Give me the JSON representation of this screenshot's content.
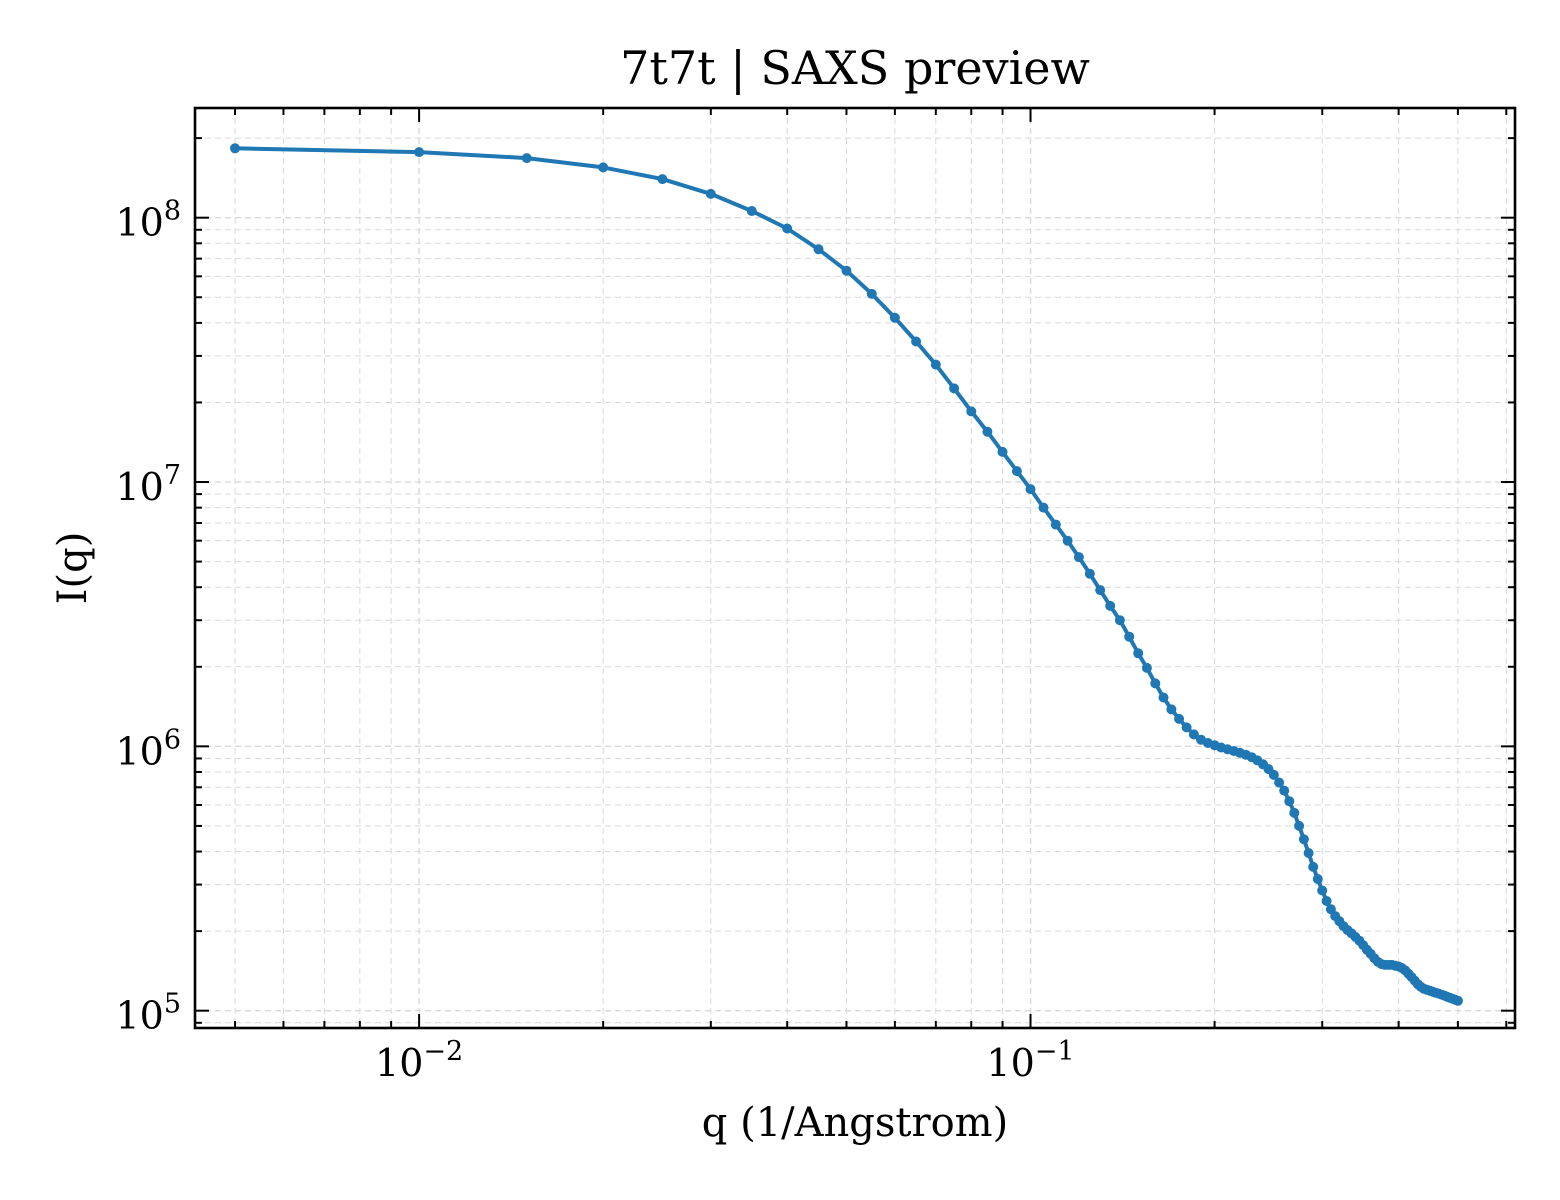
{
  "chart_data": {
    "type": "line",
    "title": "7t7t | SAXS preview",
    "xlabel": "q (1/Angstrom)",
    "ylabel": "I(q)",
    "x_scale": "log",
    "y_scale": "log",
    "xlim": [
      0.0043,
      0.62
    ],
    "ylim": [
      86000,
      260000000
    ],
    "grid": true,
    "legend": "none",
    "x_ticks": [
      {
        "value": 0.01,
        "base": "10",
        "exp": "−2"
      },
      {
        "value": 0.1,
        "base": "10",
        "exp": "−1"
      }
    ],
    "y_ticks": [
      {
        "value": 100000,
        "base": "10",
        "exp": "5"
      },
      {
        "value": 1000000,
        "base": "10",
        "exp": "6"
      },
      {
        "value": 10000000,
        "base": "10",
        "exp": "7"
      },
      {
        "value": 100000000,
        "base": "10",
        "exp": "8"
      }
    ],
    "colors": {
      "series": "#1f77b4",
      "grid": "#d9d9d9",
      "axes": "#000000"
    },
    "series": [
      {
        "x": [
          0.005,
          0.01,
          0.015,
          0.02,
          0.025,
          0.03,
          0.035,
          0.04,
          0.045,
          0.05,
          0.055,
          0.06,
          0.065,
          0.07,
          0.075,
          0.08,
          0.085,
          0.09,
          0.095,
          0.1,
          0.105,
          0.11,
          0.115,
          0.12,
          0.125,
          0.13,
          0.135,
          0.14,
          0.145,
          0.15,
          0.155,
          0.16,
          0.165,
          0.17,
          0.175,
          0.18,
          0.185,
          0.19,
          0.195,
          0.2,
          0.205,
          0.21,
          0.215,
          0.22,
          0.225,
          0.23,
          0.235,
          0.24,
          0.245,
          0.25,
          0.255,
          0.26,
          0.265,
          0.27,
          0.275,
          0.28,
          0.285,
          0.29,
          0.295,
          0.3,
          0.305,
          0.31,
          0.315,
          0.32,
          0.325,
          0.33,
          0.335,
          0.34,
          0.345,
          0.35,
          0.355,
          0.36,
          0.365,
          0.37,
          0.375,
          0.38,
          0.385,
          0.39,
          0.395,
          0.4,
          0.405,
          0.41,
          0.415,
          0.42,
          0.425,
          0.43,
          0.435,
          0.44,
          0.445,
          0.45,
          0.455,
          0.46,
          0.465,
          0.47,
          0.475,
          0.48,
          0.485,
          0.49,
          0.495,
          0.5
        ],
        "y": [
          183000000,
          177000000,
          168000000,
          155000000,
          140000000,
          123000000,
          106000000,
          91000000,
          76000000,
          63000000,
          51500000,
          41800000,
          34000000,
          27800000,
          22600000,
          18500000,
          15500000,
          13000000,
          11000000,
          9400000,
          8000000,
          6900000,
          6000000,
          5200000,
          4500000,
          3900000,
          3400000,
          3000000,
          2600000,
          2250000,
          1980000,
          1730000,
          1530000,
          1380000,
          1270000,
          1180000,
          1110000,
          1060000,
          1030000,
          1010000,
          990000,
          975000,
          960000,
          945000,
          930000,
          910000,
          885000,
          855000,
          820000,
          780000,
          730000,
          680000,
          620000,
          560000,
          500000,
          445000,
          395000,
          350000,
          315000,
          285000,
          260000,
          242000,
          228000,
          218000,
          209000,
          202000,
          196000,
          190000,
          184000,
          177000,
          170000,
          164000,
          158000,
          153000,
          150000,
          149000,
          149000,
          149000,
          148000,
          147000,
          145000,
          142000,
          138000,
          134000,
          130000,
          126000,
          123000,
          121000,
          120000,
          119000,
          118000,
          117000,
          116000,
          115000,
          114000,
          113000,
          112000,
          111000,
          110000,
          109000
        ]
      }
    ]
  }
}
